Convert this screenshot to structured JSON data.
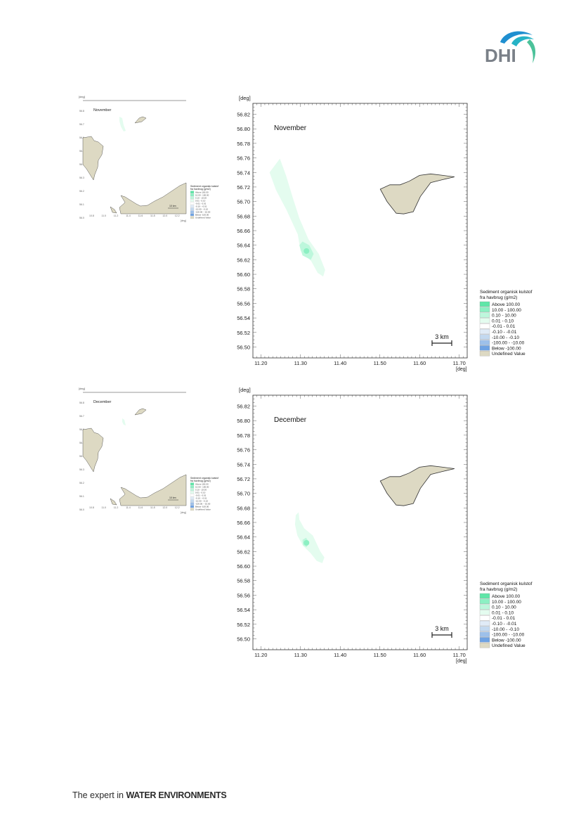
{
  "header": {
    "logo_text": "DHI"
  },
  "footer": {
    "text_plain": "The expert in ",
    "text_bold": "WATER ENVIRONMENTS"
  },
  "axis": {
    "unit": "[deg]",
    "y_ticks": [
      "56.82",
      "56.80",
      "56.78",
      "56.76",
      "56.74",
      "56.72",
      "56.70",
      "56.68",
      "56.66",
      "56.64",
      "56.62",
      "56.60",
      "56.58",
      "56.56",
      "56.54",
      "56.52",
      "56.50"
    ],
    "x_ticks": [
      "11.20",
      "11.30",
      "11.40",
      "11.50",
      "11.60",
      "11.70"
    ],
    "mini_y_ticks": [
      "56.8",
      "56.7",
      "56.6",
      "56.5",
      "56.4",
      "56.3",
      "56.2",
      "56.1",
      "56.0"
    ],
    "mini_x_ticks": [
      "10.8",
      "11.0",
      "11.2",
      "11.4",
      "11.6",
      "11.8",
      "12.0",
      "12.2"
    ]
  },
  "legend": {
    "title_line1": "Sediment organisk kulstof",
    "title_line2": "fra havbrug (g/m2)",
    "items": [
      {
        "label": "Above     100.00",
        "color": "#5fe6a8"
      },
      {
        "label": "10.00 -   100.00",
        "color": "#8cf0c3"
      },
      {
        "label": "0.10 -     10.00",
        "color": "#bdf7dc"
      },
      {
        "label": "0.01 -      0.10",
        "color": "#e4fcef"
      },
      {
        "label": "-0.01 -      0.01",
        "color": "#ffffff"
      },
      {
        "label": "-0.10 -     -0.01",
        "color": "#e0ebf7"
      },
      {
        "label": "-10.00 -    -0.10",
        "color": "#c3d9f0"
      },
      {
        "label": "-100.00 -   -10.00",
        "color": "#9dc0ea"
      },
      {
        "label": "Below    -100.00",
        "color": "#6ea2e3"
      },
      {
        "label": "Undefined Value",
        "color": "#ddd9c3"
      }
    ]
  },
  "scale_bar": {
    "large": "3 km",
    "small": "10 km"
  },
  "panels": [
    {
      "month": "November",
      "plume": "large"
    },
    {
      "month": "December",
      "plume": "small"
    }
  ],
  "colors": {
    "land": "#ddd9c3",
    "plume_low": "#e4fcef",
    "plume_mid": "#bdf7dc",
    "plume_core": "#8cf0c3"
  }
}
